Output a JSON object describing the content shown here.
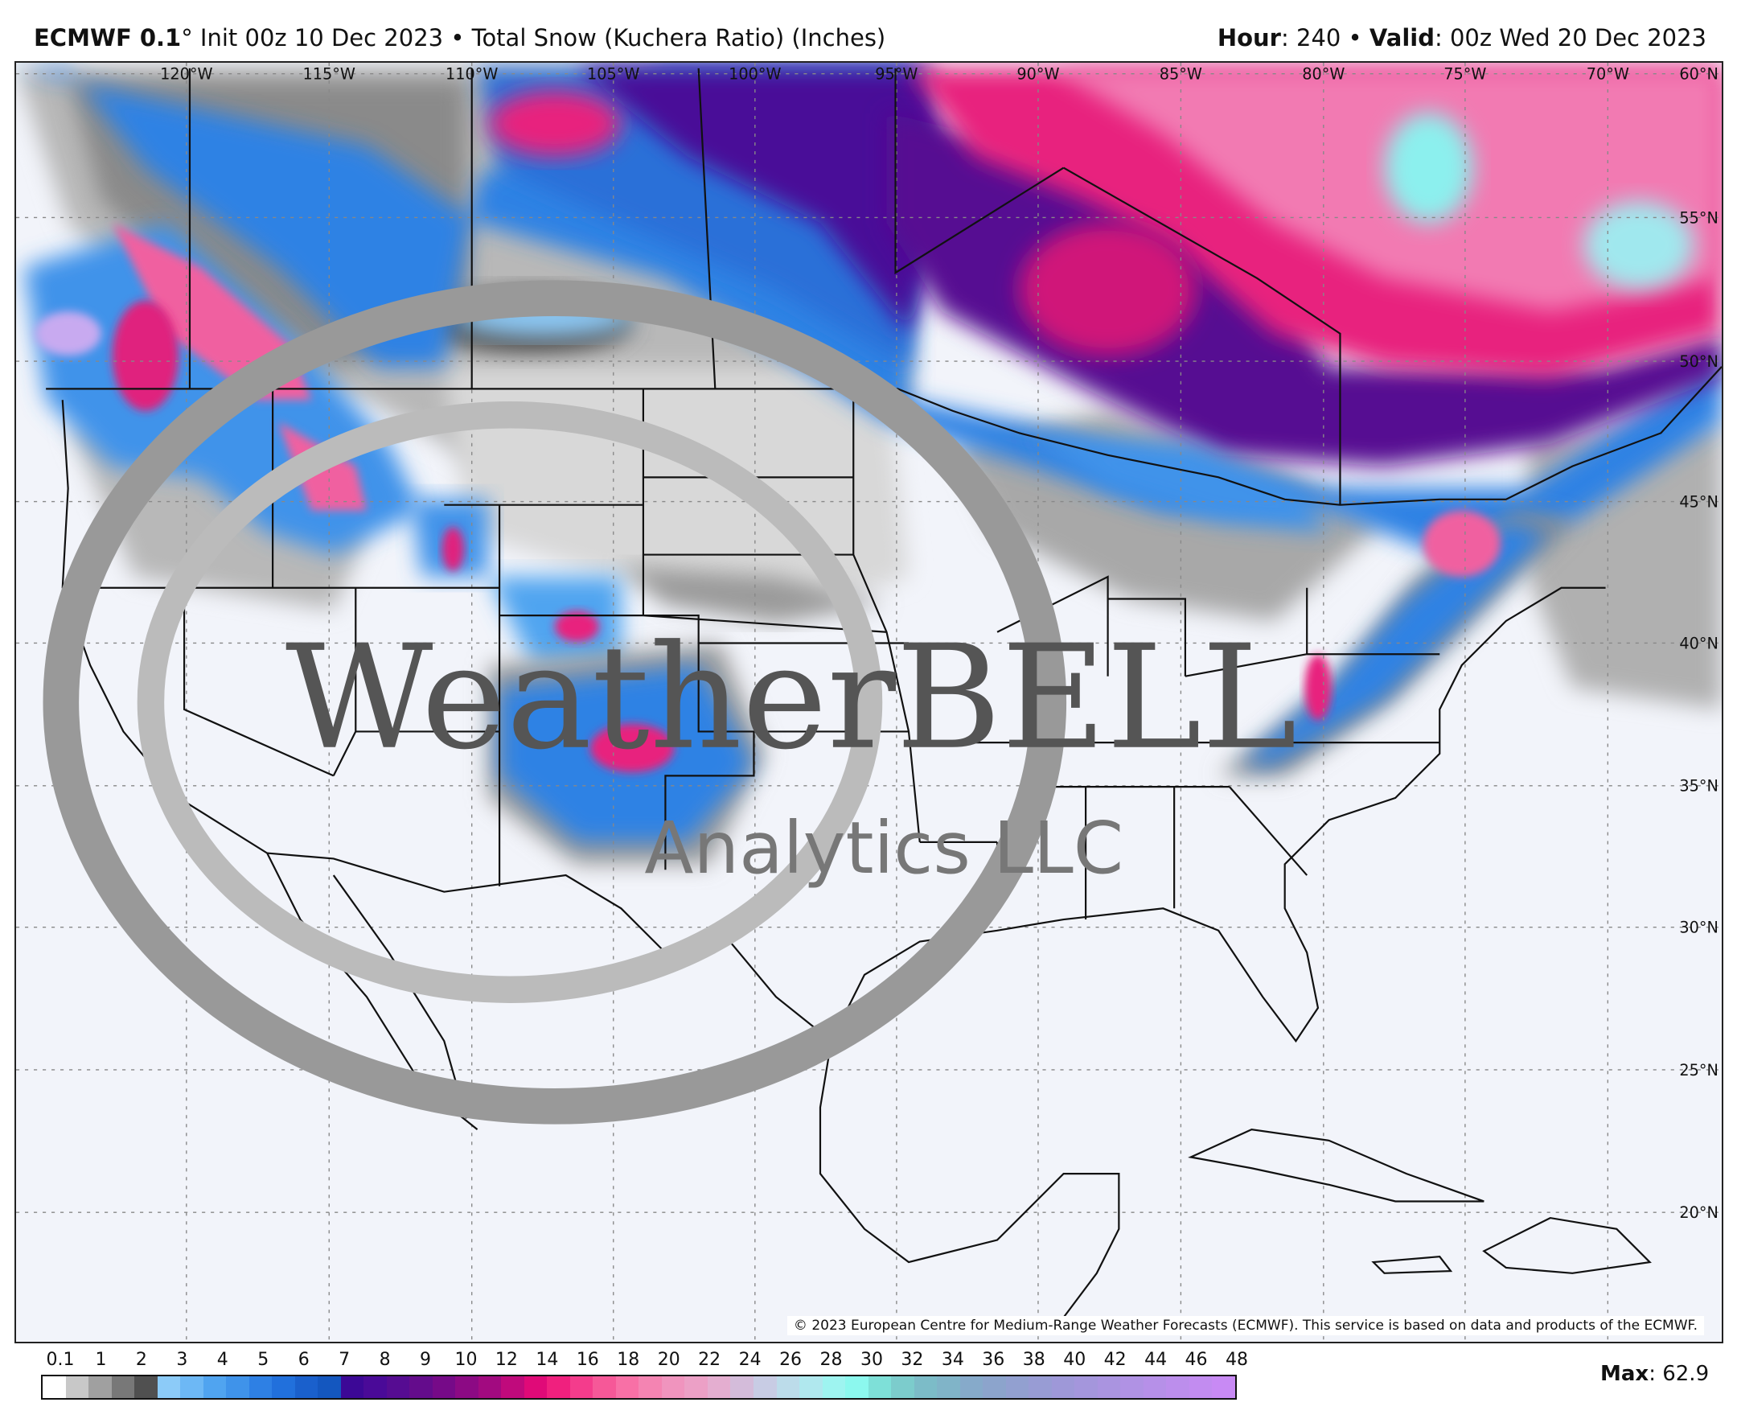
{
  "header": {
    "model_bold": "ECMWF 0.1",
    "model_deg": "°",
    "title_rest": " Init 00z 10 Dec 2023 • Total Snow (Kuchera Ratio) (Inches)",
    "hour_label": "Hour",
    "hour_value": ": 240 • ",
    "valid_label": "Valid",
    "valid_value": ": 00z Wed 20 Dec 2023"
  },
  "map": {
    "longitude_labels": [
      "120°W",
      "115°W",
      "110°W",
      "105°W",
      "100°W",
      "95°W",
      "90°W",
      "85°W",
      "80°W",
      "75°W",
      "70°W"
    ],
    "latitude_labels": [
      "60°N",
      "55°N",
      "50°N",
      "45°N",
      "40°N",
      "35°N",
      "30°N",
      "25°N",
      "20°N"
    ],
    "copyright": "© 2023 European Centre for Medium-Range Weather Forecasts (ECMWF). This service is based on data and products of the ECMWF.",
    "logo_text": "WeatherBELL",
    "logo_sub": "Analytics LLC"
  },
  "legend": {
    "labels": [
      "0.1",
      "1",
      "2",
      "3",
      "4",
      "5",
      "6",
      "7",
      "8",
      "9",
      "10",
      "12",
      "14",
      "16",
      "18",
      "20",
      "22",
      "24",
      "26",
      "28",
      "30",
      "32",
      "34",
      "36",
      "38",
      "40",
      "42",
      "44",
      "46",
      "48"
    ],
    "colors": [
      "#ffffff",
      "#c8c8c8",
      "#a0a0a0",
      "#787878",
      "#505050",
      "#8ccbf8",
      "#6db8f5",
      "#50a4f0",
      "#3f93ea",
      "#2e80e4",
      "#2170dc",
      "#1a60cc",
      "#1457bf",
      "#3c0896",
      "#4a0a98",
      "#560c92",
      "#640c8c",
      "#760a88",
      "#8c0a84",
      "#a20a80",
      "#c00a7c",
      "#e00a78",
      "#f0207e",
      "#f43c8c",
      "#f65898",
      "#f870a6",
      "#f484b2",
      "#f094be",
      "#eca0c6",
      "#e4aed0",
      "#d4bcda",
      "#c8cce4",
      "#bcdcea",
      "#b0e8ee",
      "#9ef4f0",
      "#8cf8ee",
      "#7ee0d8",
      "#7ccccc",
      "#7cbcc8",
      "#80b4c8",
      "#86aaca",
      "#8ca4cc",
      "#92a0d0",
      "#989cd4",
      "#9e98d8",
      "#a496dc",
      "#aa94e0",
      "#b092e4",
      "#b690e8",
      "#bc8eec",
      "#c28cf0",
      "#c88af4"
    ],
    "max_label": "Max",
    "max_value": ": 62.9"
  }
}
